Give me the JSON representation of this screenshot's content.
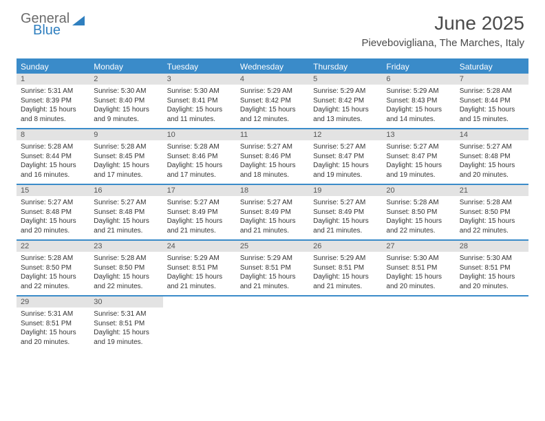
{
  "logo": {
    "text1": "General",
    "text2": "Blue"
  },
  "title": "June 2025",
  "location": "Pievebovigliana, The Marches, Italy",
  "colors": {
    "header_bg": "#3a8bc9",
    "daynum_bg": "#e3e3e3",
    "border": "#3a8bc9",
    "text": "#333333",
    "logo_gray": "#6b6b6b",
    "logo_blue": "#2f7fbf"
  },
  "day_names": [
    "Sunday",
    "Monday",
    "Tuesday",
    "Wednesday",
    "Thursday",
    "Friday",
    "Saturday"
  ],
  "weeks": [
    [
      {
        "n": "1",
        "sr": "Sunrise: 5:31 AM",
        "ss": "Sunset: 8:39 PM",
        "d1": "Daylight: 15 hours",
        "d2": "and 8 minutes."
      },
      {
        "n": "2",
        "sr": "Sunrise: 5:30 AM",
        "ss": "Sunset: 8:40 PM",
        "d1": "Daylight: 15 hours",
        "d2": "and 9 minutes."
      },
      {
        "n": "3",
        "sr": "Sunrise: 5:30 AM",
        "ss": "Sunset: 8:41 PM",
        "d1": "Daylight: 15 hours",
        "d2": "and 11 minutes."
      },
      {
        "n": "4",
        "sr": "Sunrise: 5:29 AM",
        "ss": "Sunset: 8:42 PM",
        "d1": "Daylight: 15 hours",
        "d2": "and 12 minutes."
      },
      {
        "n": "5",
        "sr": "Sunrise: 5:29 AM",
        "ss": "Sunset: 8:42 PM",
        "d1": "Daylight: 15 hours",
        "d2": "and 13 minutes."
      },
      {
        "n": "6",
        "sr": "Sunrise: 5:29 AM",
        "ss": "Sunset: 8:43 PM",
        "d1": "Daylight: 15 hours",
        "d2": "and 14 minutes."
      },
      {
        "n": "7",
        "sr": "Sunrise: 5:28 AM",
        "ss": "Sunset: 8:44 PM",
        "d1": "Daylight: 15 hours",
        "d2": "and 15 minutes."
      }
    ],
    [
      {
        "n": "8",
        "sr": "Sunrise: 5:28 AM",
        "ss": "Sunset: 8:44 PM",
        "d1": "Daylight: 15 hours",
        "d2": "and 16 minutes."
      },
      {
        "n": "9",
        "sr": "Sunrise: 5:28 AM",
        "ss": "Sunset: 8:45 PM",
        "d1": "Daylight: 15 hours",
        "d2": "and 17 minutes."
      },
      {
        "n": "10",
        "sr": "Sunrise: 5:28 AM",
        "ss": "Sunset: 8:46 PM",
        "d1": "Daylight: 15 hours",
        "d2": "and 17 minutes."
      },
      {
        "n": "11",
        "sr": "Sunrise: 5:27 AM",
        "ss": "Sunset: 8:46 PM",
        "d1": "Daylight: 15 hours",
        "d2": "and 18 minutes."
      },
      {
        "n": "12",
        "sr": "Sunrise: 5:27 AM",
        "ss": "Sunset: 8:47 PM",
        "d1": "Daylight: 15 hours",
        "d2": "and 19 minutes."
      },
      {
        "n": "13",
        "sr": "Sunrise: 5:27 AM",
        "ss": "Sunset: 8:47 PM",
        "d1": "Daylight: 15 hours",
        "d2": "and 19 minutes."
      },
      {
        "n": "14",
        "sr": "Sunrise: 5:27 AM",
        "ss": "Sunset: 8:48 PM",
        "d1": "Daylight: 15 hours",
        "d2": "and 20 minutes."
      }
    ],
    [
      {
        "n": "15",
        "sr": "Sunrise: 5:27 AM",
        "ss": "Sunset: 8:48 PM",
        "d1": "Daylight: 15 hours",
        "d2": "and 20 minutes."
      },
      {
        "n": "16",
        "sr": "Sunrise: 5:27 AM",
        "ss": "Sunset: 8:48 PM",
        "d1": "Daylight: 15 hours",
        "d2": "and 21 minutes."
      },
      {
        "n": "17",
        "sr": "Sunrise: 5:27 AM",
        "ss": "Sunset: 8:49 PM",
        "d1": "Daylight: 15 hours",
        "d2": "and 21 minutes."
      },
      {
        "n": "18",
        "sr": "Sunrise: 5:27 AM",
        "ss": "Sunset: 8:49 PM",
        "d1": "Daylight: 15 hours",
        "d2": "and 21 minutes."
      },
      {
        "n": "19",
        "sr": "Sunrise: 5:27 AM",
        "ss": "Sunset: 8:49 PM",
        "d1": "Daylight: 15 hours",
        "d2": "and 21 minutes."
      },
      {
        "n": "20",
        "sr": "Sunrise: 5:28 AM",
        "ss": "Sunset: 8:50 PM",
        "d1": "Daylight: 15 hours",
        "d2": "and 22 minutes."
      },
      {
        "n": "21",
        "sr": "Sunrise: 5:28 AM",
        "ss": "Sunset: 8:50 PM",
        "d1": "Daylight: 15 hours",
        "d2": "and 22 minutes."
      }
    ],
    [
      {
        "n": "22",
        "sr": "Sunrise: 5:28 AM",
        "ss": "Sunset: 8:50 PM",
        "d1": "Daylight: 15 hours",
        "d2": "and 22 minutes."
      },
      {
        "n": "23",
        "sr": "Sunrise: 5:28 AM",
        "ss": "Sunset: 8:50 PM",
        "d1": "Daylight: 15 hours",
        "d2": "and 22 minutes."
      },
      {
        "n": "24",
        "sr": "Sunrise: 5:29 AM",
        "ss": "Sunset: 8:51 PM",
        "d1": "Daylight: 15 hours",
        "d2": "and 21 minutes."
      },
      {
        "n": "25",
        "sr": "Sunrise: 5:29 AM",
        "ss": "Sunset: 8:51 PM",
        "d1": "Daylight: 15 hours",
        "d2": "and 21 minutes."
      },
      {
        "n": "26",
        "sr": "Sunrise: 5:29 AM",
        "ss": "Sunset: 8:51 PM",
        "d1": "Daylight: 15 hours",
        "d2": "and 21 minutes."
      },
      {
        "n": "27",
        "sr": "Sunrise: 5:30 AM",
        "ss": "Sunset: 8:51 PM",
        "d1": "Daylight: 15 hours",
        "d2": "and 20 minutes."
      },
      {
        "n": "28",
        "sr": "Sunrise: 5:30 AM",
        "ss": "Sunset: 8:51 PM",
        "d1": "Daylight: 15 hours",
        "d2": "and 20 minutes."
      }
    ],
    [
      {
        "n": "29",
        "sr": "Sunrise: 5:31 AM",
        "ss": "Sunset: 8:51 PM",
        "d1": "Daylight: 15 hours",
        "d2": "and 20 minutes."
      },
      {
        "n": "30",
        "sr": "Sunrise: 5:31 AM",
        "ss": "Sunset: 8:51 PM",
        "d1": "Daylight: 15 hours",
        "d2": "and 19 minutes."
      },
      null,
      null,
      null,
      null,
      null
    ]
  ]
}
